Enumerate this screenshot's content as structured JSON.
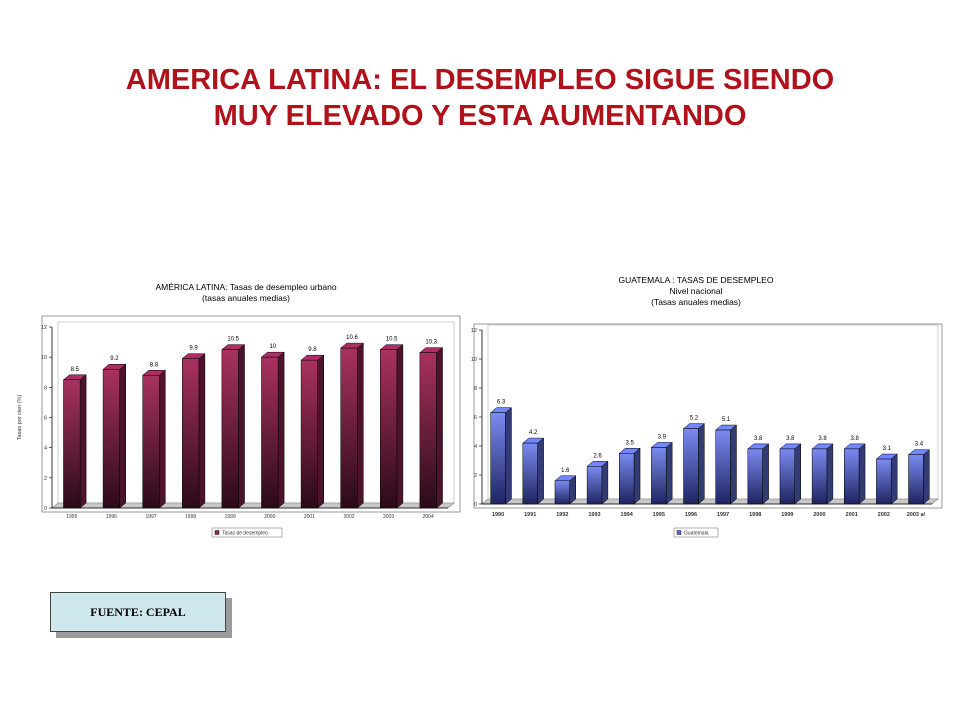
{
  "slide": {
    "title_line1": "AMERICA LATINA:  EL DESEMPLEO SIGUE SIENDO",
    "title_line2": "MUY ELEVADO Y ESTA AUMENTANDO",
    "source_label": "FUENTE: CEPAL",
    "title_color": "#b0121b"
  },
  "chart_data": [
    {
      "type": "bar",
      "title": "AMÉRICA LATINA: Tasas de desempleo urbano",
      "subtitle": "(tasas anuales medias)",
      "xlabel": "",
      "ylabel": "Tasas por cien (%)",
      "ylim": [
        0,
        12
      ],
      "yticks": [
        0,
        2,
        4,
        6,
        8,
        10,
        12
      ],
      "grid": false,
      "legend_position": "bottom",
      "categories": [
        "1995",
        "1996",
        "1997",
        "1998",
        "1999",
        "2000",
        "2001",
        "2002",
        "2003",
        "2004"
      ],
      "series": [
        {
          "name": "Tasas de desempleo",
          "values": [
            8.5,
            9.2,
            8.8,
            9.9,
            10.5,
            10,
            9.8,
            10.6,
            10.5,
            10.3
          ],
          "color": "#8b2450"
        }
      ],
      "data_labels": [
        "8.5",
        "9.2",
        "8.8",
        "9.9",
        "10.5",
        "10",
        "9.8",
        "10.6",
        "10.5",
        "10.3"
      ]
    },
    {
      "type": "bar",
      "title": "GUATEMALA : TASAS DE DESEMPLEO",
      "subtitle": "Nivel nacional",
      "subtitle2": "(Tasas anuales medias)",
      "xlabel": "",
      "ylabel": "",
      "ylim": [
        0,
        12
      ],
      "yticks": [
        0,
        2,
        4,
        6,
        8,
        10,
        12
      ],
      "grid": false,
      "legend_position": "bottom",
      "categories": [
        "1990",
        "1991",
        "1992",
        "1993",
        "1994",
        "1995",
        "1996",
        "1997",
        "1998",
        "1999",
        "2000",
        "2001",
        "2002",
        "2003 a/"
      ],
      "series": [
        {
          "name": "Guatemala",
          "values": [
            6.3,
            4.2,
            1.6,
            2.6,
            3.5,
            3.9,
            5.2,
            5.1,
            3.8,
            3.8,
            3.8,
            3.8,
            3.1,
            3.4
          ],
          "color": "#5a6bd0"
        }
      ],
      "data_labels": [
        "6.3",
        "4.2",
        "1.6",
        "2.6",
        "3.5",
        "3.9",
        "5.2",
        "5.1",
        "3.8",
        "3.8",
        "3.8",
        "3.8",
        "3.1",
        "3.4"
      ]
    }
  ]
}
